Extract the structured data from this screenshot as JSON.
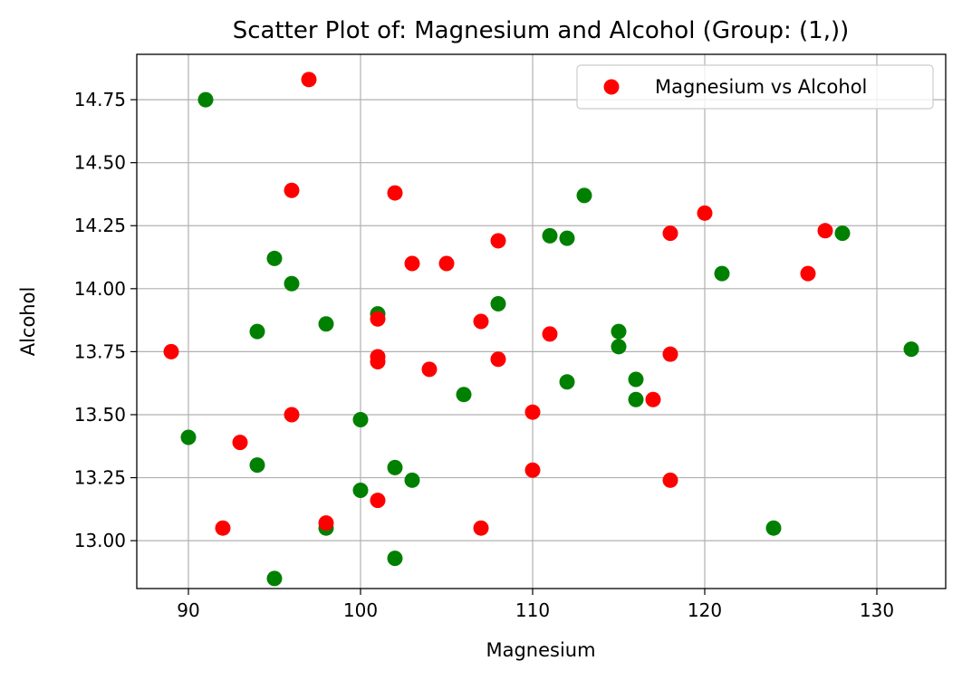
{
  "chart_data": {
    "type": "scatter",
    "title": "Scatter Plot of: Magnesium and Alcohol (Group: (1,))",
    "xlabel": "Magnesium",
    "ylabel": "Alcohol",
    "xlim": [
      87,
      134
    ],
    "ylim": [
      12.81,
      14.93
    ],
    "xticks": [
      90,
      100,
      110,
      120,
      130
    ],
    "yticks": [
      13.0,
      13.25,
      13.5,
      13.75,
      14.0,
      14.25,
      14.5,
      14.75
    ],
    "grid": true,
    "legend": {
      "position": "upper right",
      "label": "Magnesium vs Alcohol",
      "color": "#ff0000"
    },
    "series": [
      {
        "name": "Magnesium vs Alcohol",
        "color": "#ff0000",
        "points": [
          [
            89,
            13.75
          ],
          [
            92,
            13.05
          ],
          [
            93,
            13.39
          ],
          [
            96,
            14.39
          ],
          [
            96,
            13.5
          ],
          [
            97,
            14.83
          ],
          [
            98,
            13.07
          ],
          [
            101,
            13.88
          ],
          [
            101,
            13.73
          ],
          [
            101,
            13.71
          ],
          [
            101,
            13.16
          ],
          [
            102,
            14.38
          ],
          [
            103,
            14.1
          ],
          [
            104,
            13.68
          ],
          [
            105,
            14.1
          ],
          [
            107,
            13.87
          ],
          [
            107,
            13.05
          ],
          [
            108,
            14.19
          ],
          [
            108,
            13.72
          ],
          [
            110,
            13.51
          ],
          [
            110,
            13.28
          ],
          [
            111,
            13.82
          ],
          [
            117,
            13.56
          ],
          [
            118,
            14.22
          ],
          [
            118,
            13.74
          ],
          [
            118,
            13.24
          ],
          [
            120,
            14.3
          ],
          [
            126,
            14.06
          ],
          [
            127,
            14.23
          ]
        ]
      },
      {
        "color": "#008000",
        "points": [
          [
            90,
            13.41
          ],
          [
            91,
            14.75
          ],
          [
            94,
            13.83
          ],
          [
            94,
            13.3
          ],
          [
            95,
            14.12
          ],
          [
            95,
            12.85
          ],
          [
            96,
            14.02
          ],
          [
            98,
            13.86
          ],
          [
            98,
            13.05
          ],
          [
            100,
            13.48
          ],
          [
            100,
            13.2
          ],
          [
            101,
            13.9
          ],
          [
            102,
            13.29
          ],
          [
            102,
            12.93
          ],
          [
            103,
            13.24
          ],
          [
            106,
            13.58
          ],
          [
            108,
            13.94
          ],
          [
            111,
            14.21
          ],
          [
            112,
            14.2
          ],
          [
            112,
            13.63
          ],
          [
            113,
            14.37
          ],
          [
            115,
            13.83
          ],
          [
            115,
            13.77
          ],
          [
            116,
            13.64
          ],
          [
            116,
            13.56
          ],
          [
            121,
            14.06
          ],
          [
            124,
            13.05
          ],
          [
            128,
            14.22
          ],
          [
            132,
            13.76
          ]
        ]
      }
    ]
  }
}
